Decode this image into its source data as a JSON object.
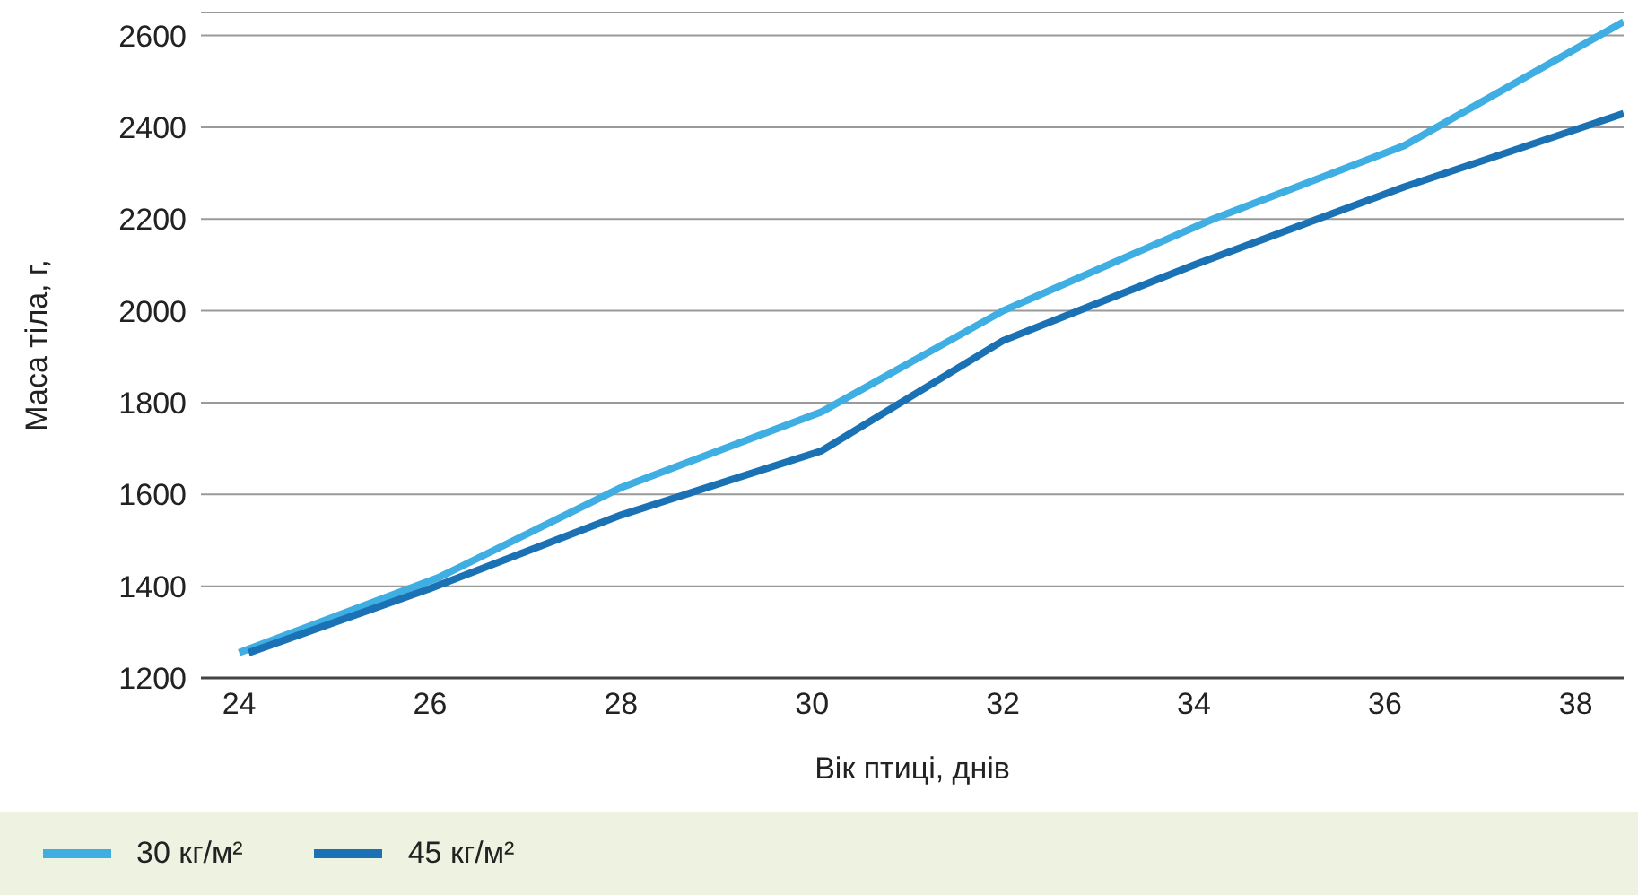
{
  "chart_data": {
    "type": "line",
    "xlabel": "Вік птиці, днів",
    "ylabel": "Маса тіла, г,",
    "xlim": [
      23.6,
      38.5
    ],
    "xticks": [
      24,
      26,
      28,
      30,
      32,
      34,
      36,
      38
    ],
    "ylim": [
      1200,
      2650
    ],
    "yticks": [
      1200,
      1400,
      1600,
      1800,
      2000,
      2200,
      2400,
      2600
    ],
    "grid": "y",
    "legend": "bottom",
    "marker": "none",
    "line_style": "solid",
    "series": [
      {
        "name": "30 кг/м²",
        "color": "#3eaee3",
        "x": [
          24,
          26.1,
          28,
          30.1,
          32,
          34.2,
          36.2,
          38.5
        ],
        "values": [
          1255,
          1420,
          1615,
          1780,
          2000,
          2200,
          2360,
          2630
        ]
      },
      {
        "name": "45 кг/м²",
        "color": "#1a72b5",
        "x": [
          24.1,
          26,
          28,
          30.1,
          32,
          34,
          36.2,
          38.5
        ],
        "values": [
          1255,
          1395,
          1555,
          1695,
          1935,
          2100,
          2270,
          2430
        ]
      }
    ]
  }
}
